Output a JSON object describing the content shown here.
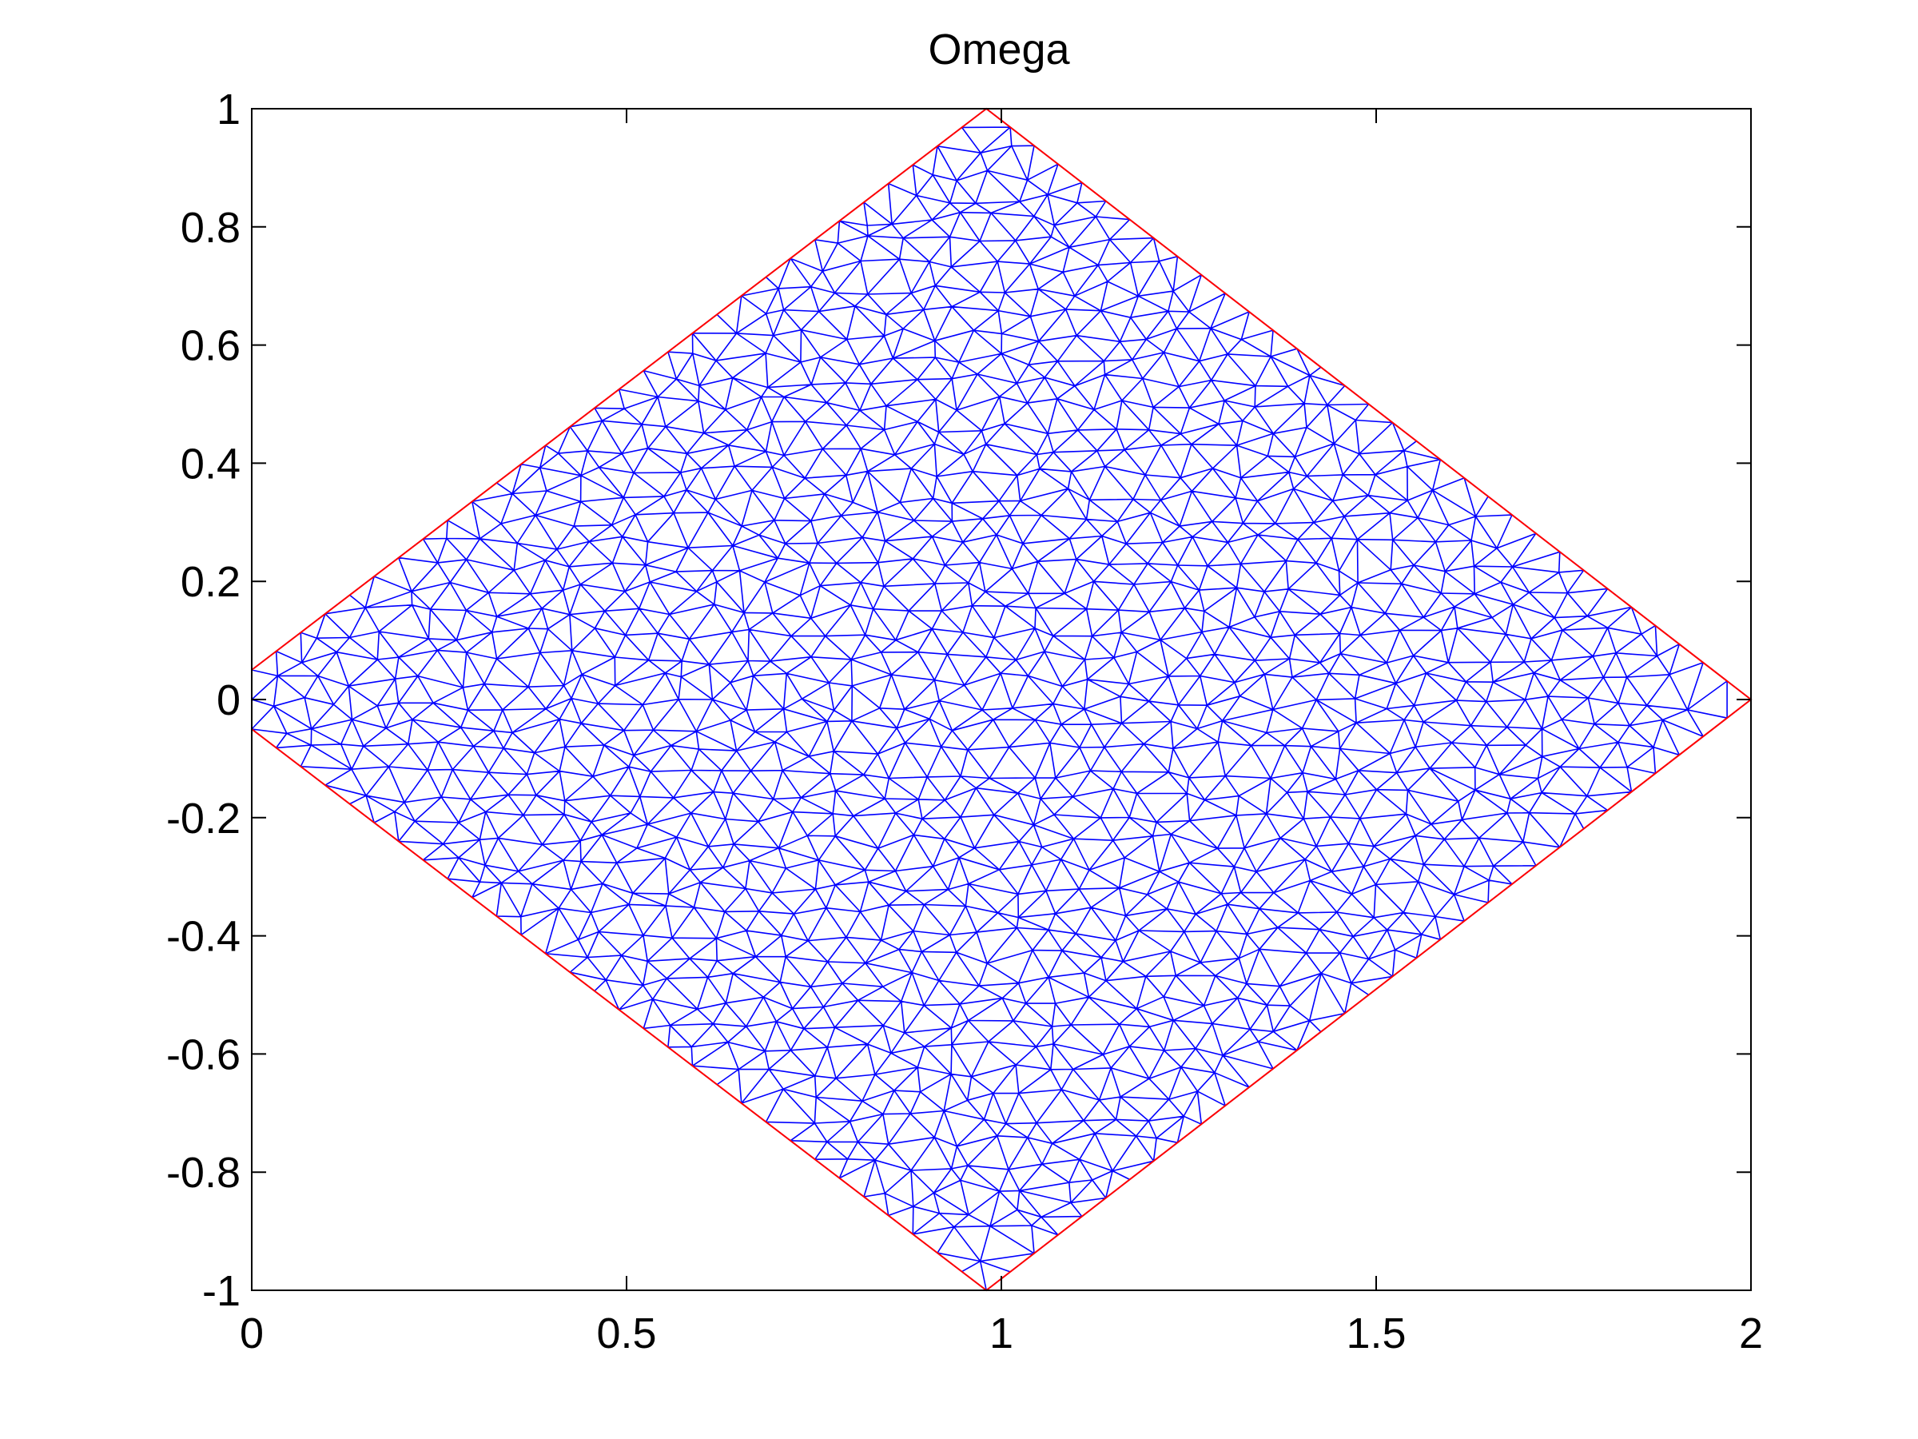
{
  "chart_data": {
    "type": "mesh",
    "title": "Omega",
    "xlabel": "",
    "ylabel": "",
    "xlim": [
      0,
      2
    ],
    "ylim": [
      -1,
      1
    ],
    "xticks": [
      0,
      0.5,
      1,
      1.5,
      2
    ],
    "xtick_labels": [
      "0",
      "0.5",
      "1",
      "1.5",
      "2"
    ],
    "yticks": [
      -1,
      -0.8,
      -0.6,
      -0.4,
      -0.2,
      0,
      0.2,
      0.4,
      0.6,
      0.8,
      1
    ],
    "ytick_labels": [
      "-1",
      "-0.8",
      "-0.6",
      "-0.4",
      "-0.2",
      "0",
      "0.2",
      "0.4",
      "0.6",
      "0.8",
      "1"
    ],
    "grid": false,
    "boundary": {
      "vertices": [
        [
          0,
          0.05
        ],
        [
          0.98,
          1
        ],
        [
          2,
          0
        ],
        [
          0.98,
          -1
        ],
        [
          0,
          -0.05
        ]
      ],
      "color": "#ff0000"
    },
    "mesh": {
      "color": "#0000ff",
      "element": "triangle",
      "mean_spacing": 0.045
    }
  }
}
